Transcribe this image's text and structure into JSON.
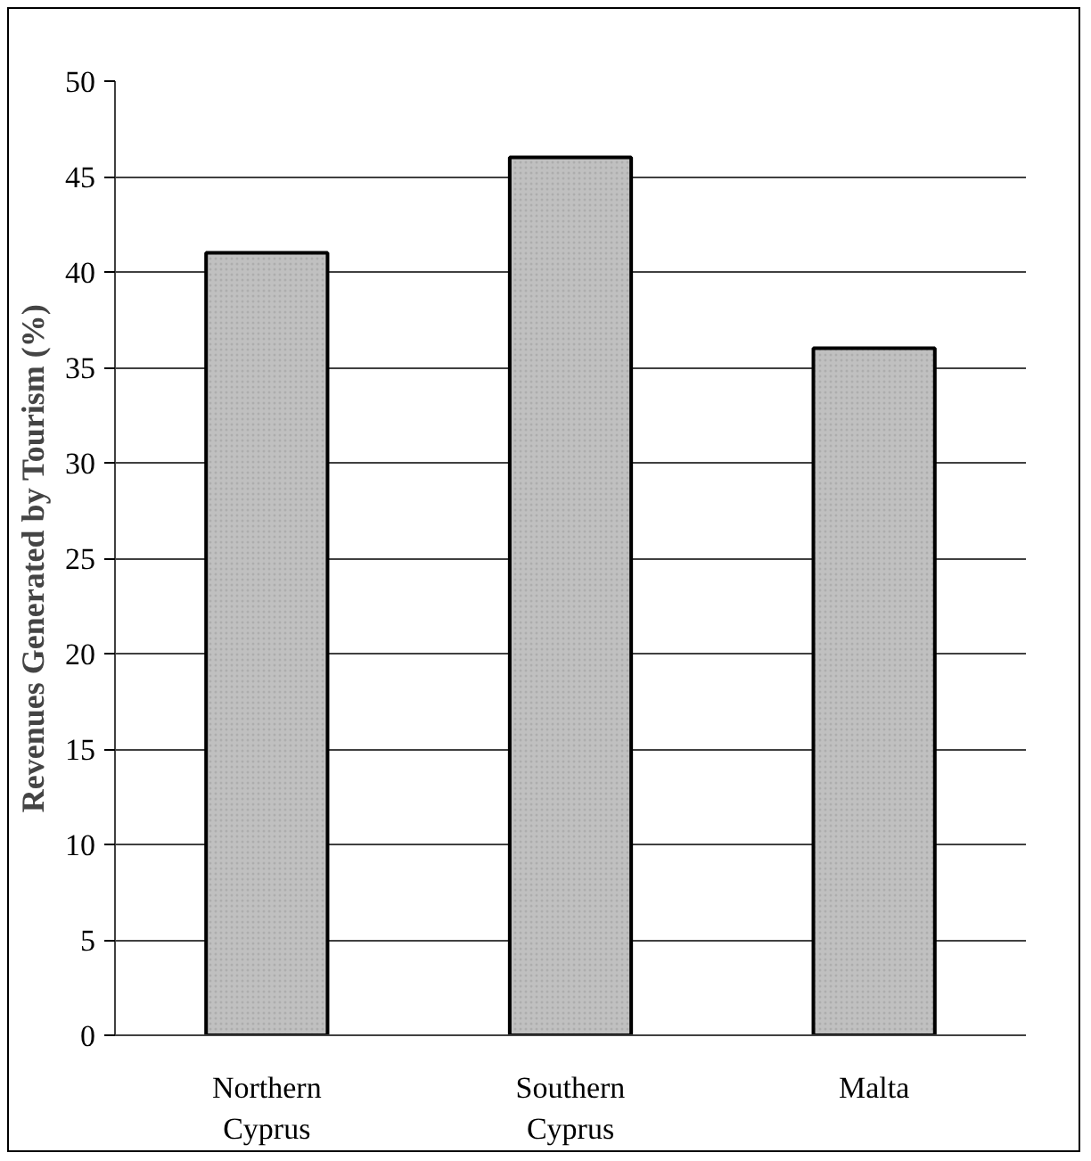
{
  "chart_data": {
    "type": "bar",
    "ylabel": "Revenues Generated by Tourism (%)",
    "categories": [
      "Northern\nCyprus",
      "Southern\nCyprus",
      "Malta"
    ],
    "values": [
      41,
      46,
      36
    ],
    "color": "#c0c0c0",
    "ylim": [
      0,
      50
    ],
    "yticks": [
      0,
      5,
      10,
      15,
      20,
      25,
      30,
      35,
      40,
      45,
      50
    ],
    "grid": "y"
  }
}
